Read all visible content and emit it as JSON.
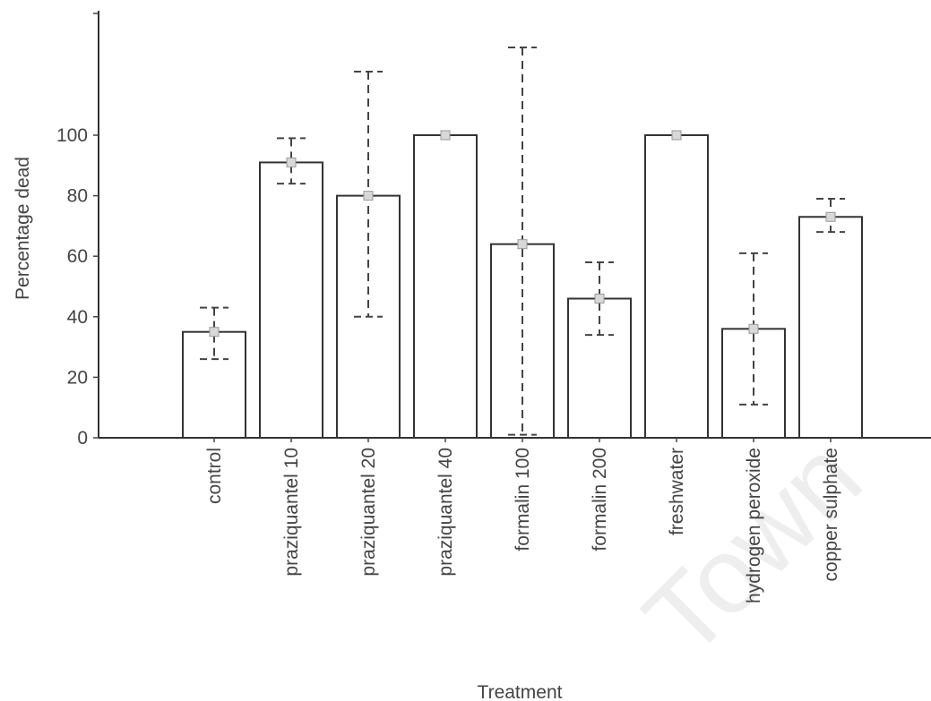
{
  "chart_data": {
    "type": "bar",
    "title": "",
    "xlabel": "Treatment",
    "ylabel": "Percentage dead",
    "ylim": [
      0,
      100
    ],
    "yticks": [
      0,
      20,
      40,
      60,
      80,
      100
    ],
    "grid": false,
    "categories": [
      "control",
      "praziquantel 10",
      "praziquantel 20",
      "praziquantel 40",
      "formalin 100",
      "formalin 200",
      "freshwater",
      "hydrogen peroxide",
      "copper sulphate"
    ],
    "values": [
      35,
      91,
      80,
      100,
      64,
      46,
      100,
      36,
      73
    ],
    "error_low": [
      26,
      84,
      40,
      100,
      1,
      34,
      100,
      11,
      68
    ],
    "error_high": [
      43,
      99,
      121,
      100,
      129,
      58,
      100,
      61,
      79
    ]
  },
  "watermark": "Town"
}
